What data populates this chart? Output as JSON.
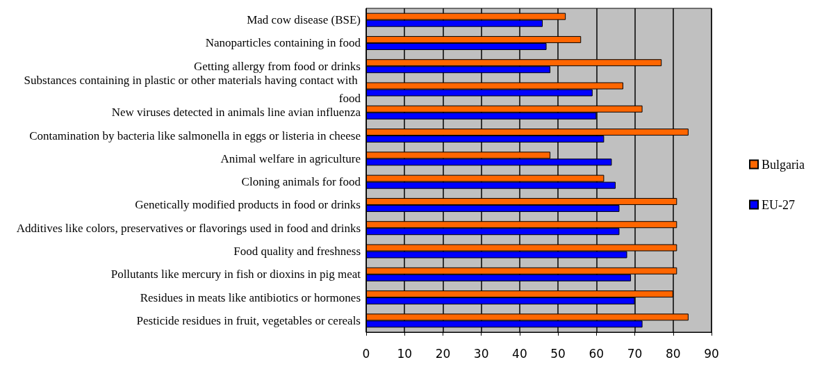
{
  "chart_data": {
    "type": "bar",
    "orientation": "horizontal",
    "categories": [
      "Mad cow disease (BSE)",
      "Nanoparticles containing in food",
      "Getting allergy from food or drinks",
      "Substances containing in plastic or other materials having contact with food",
      "New viruses detected in animals line avian influenza",
      "Contamination by bacteria like salmonella in eggs or listeria in cheese",
      "Animal welfare in agriculture",
      "Cloning animals for food",
      "Genetically modified products in food or drinks",
      "Additives like colors, preservatives or flavorings used in food and drinks",
      "Food quality and freshness",
      "Pollutants like mercury in fish or dioxins in pig meat",
      "Residues in meats like antibiotics or hormones",
      "Pesticide residues in fruit, vegetables or cereals"
    ],
    "series": [
      {
        "name": "Bulgaria",
        "color": "#ff6600",
        "values": [
          52,
          56,
          77,
          67,
          72,
          84,
          48,
          62,
          81,
          81,
          81,
          81,
          80,
          84
        ]
      },
      {
        "name": "EU-27",
        "color": "#0000ff",
        "values": [
          46,
          47,
          48,
          59,
          60,
          62,
          64,
          65,
          66,
          66,
          68,
          69,
          70,
          72
        ]
      }
    ],
    "xlim": [
      0,
      90
    ],
    "xticks": [
      0,
      10,
      20,
      30,
      40,
      50,
      60,
      70,
      80,
      90
    ],
    "grid": "x",
    "legend": "right"
  }
}
